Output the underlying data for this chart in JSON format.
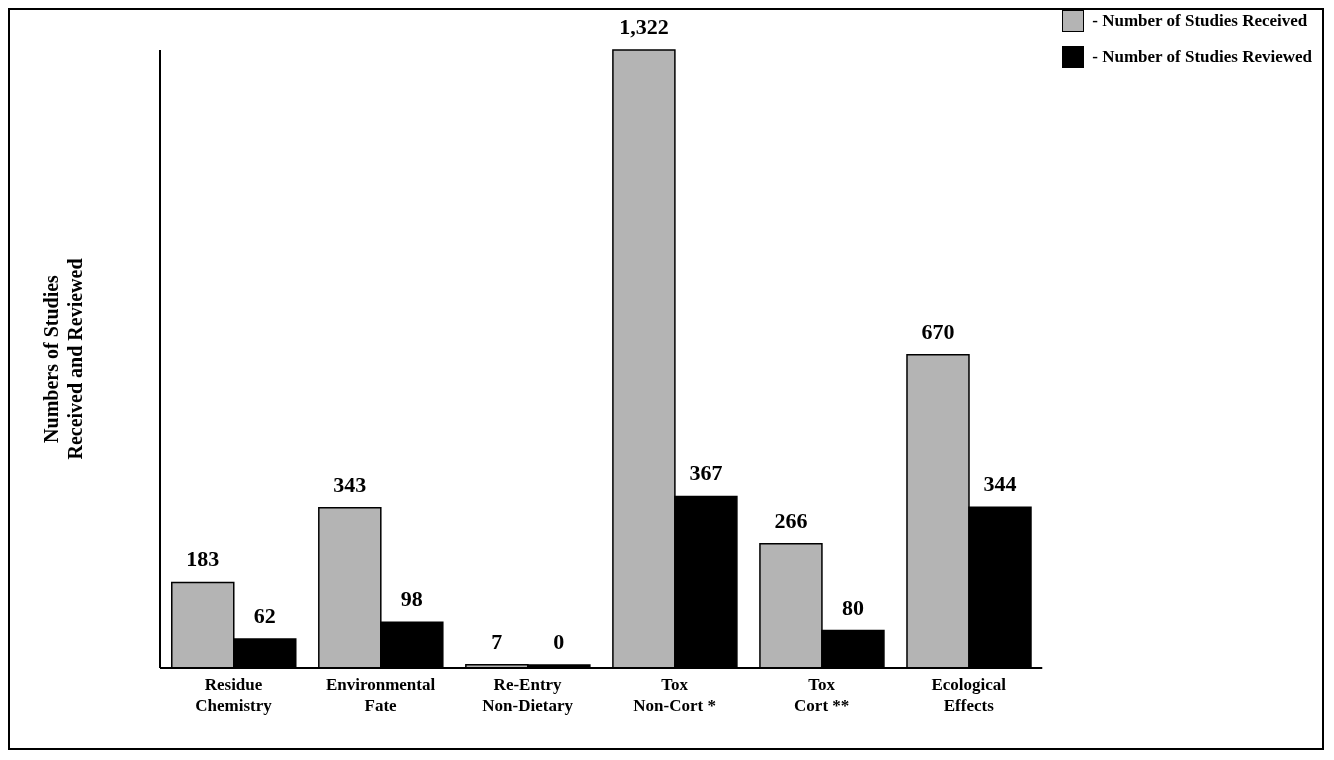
{
  "chart_data": {
    "type": "bar",
    "ylabel": "Numbers of Studies\nReceived and Reviewed",
    "categories": [
      "Residue\nChemistry",
      "Environmental\nFate",
      "Re-Entry\nNon-Dietary",
      "Tox\nNon-Cort *",
      "Tox\nCort **",
      "Ecological\nEffects"
    ],
    "series": [
      {
        "name": "- Number of Studies Received",
        "color": "#b4b4b4",
        "values": [
          183,
          343,
          7,
          1322,
          266,
          670
        ],
        "value_labels": [
          "183",
          "343",
          "7",
          "1,322",
          "266",
          "670"
        ]
      },
      {
        "name": "- Number of Studies Reviewed",
        "color": "#000000",
        "values": [
          62,
          98,
          0,
          367,
          80,
          344
        ],
        "value_labels": [
          "62",
          "98",
          "0",
          "367",
          "80",
          "344"
        ]
      }
    ],
    "legend": "top right",
    "grid": false
  }
}
